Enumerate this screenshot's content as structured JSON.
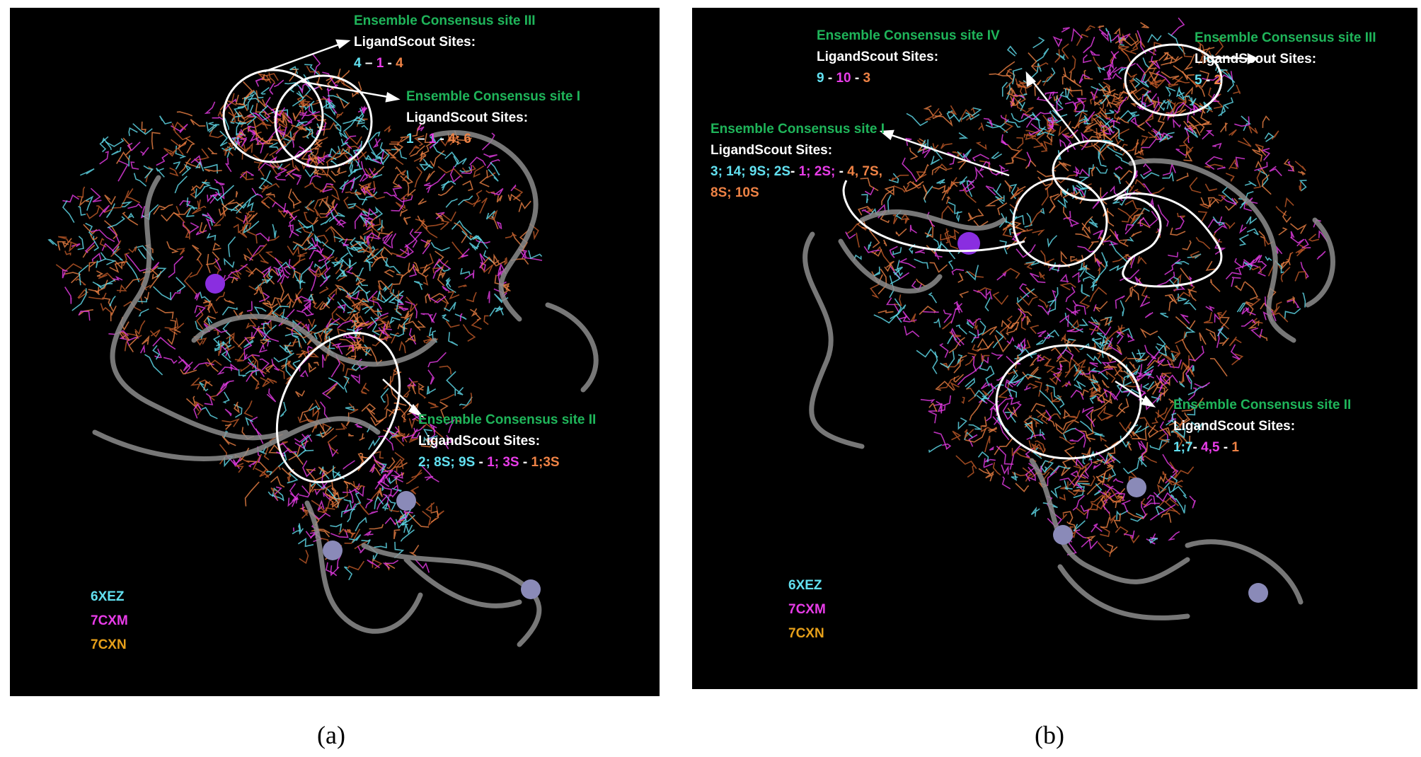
{
  "colors": {
    "site_title": "#1fb55a",
    "xez": "#62e0f0",
    "cxm": "#e83ce8",
    "cxn_ids": "#ee8245",
    "cxn_legend": "#e7a01a",
    "ribbon": "#8c8c8c",
    "background": "#000000"
  },
  "panel_a": {
    "caption": "(a)",
    "site_iii": {
      "title": "Ensemble Consensus site III",
      "subtitle": "LigandScout Sites:",
      "line": [
        {
          "t": "4",
          "c": "c"
        },
        {
          "t": " – ",
          "c": "w"
        },
        {
          "t": "1",
          "c": "m"
        },
        {
          "t": " - ",
          "c": "w"
        },
        {
          "t": "4",
          "c": "o"
        }
      ]
    },
    "site_i": {
      "title": "Ensemble Consensus site I",
      "subtitle": "LigandScout Sites:",
      "line": [
        {
          "t": "1",
          "c": "c"
        },
        {
          "t": " – ",
          "c": "w"
        },
        {
          "t": "1",
          "c": "m"
        },
        {
          "t": " - ",
          "c": "w"
        },
        {
          "t": "4; 6",
          "c": "o"
        }
      ]
    },
    "site_ii": {
      "title": "Ensemble Consensus site II",
      "subtitle": "LigandScout Sites:",
      "line": [
        {
          "t": "2; 8S; 9S",
          "c": "c"
        },
        {
          "t": " - ",
          "c": "w"
        },
        {
          "t": "1; 3S",
          "c": "m"
        },
        {
          "t": " - ",
          "c": "w"
        },
        {
          "t": "1;3S",
          "c": "o"
        }
      ]
    },
    "legend": [
      "6XEZ",
      "7CXM",
      "7CXN"
    ]
  },
  "panel_b": {
    "caption": "(b)",
    "site_iv": {
      "title": "Ensemble Consensus site IV",
      "subtitle": "LigandScout Sites:",
      "line": [
        {
          "t": "9",
          "c": "c"
        },
        {
          "t": " - ",
          "c": "w"
        },
        {
          "t": "10",
          "c": "m"
        },
        {
          "t": " - ",
          "c": "w"
        },
        {
          "t": "3",
          "c": "o"
        }
      ]
    },
    "site_iii": {
      "title": "Ensemble Consensus site III",
      "subtitle": "LigandScout Sites:",
      "line": [
        {
          "t": "5",
          "c": "c"
        },
        {
          "t": " - ",
          "c": "w"
        },
        {
          "t": "2",
          "c": "o"
        }
      ]
    },
    "site_i": {
      "title": "Ensemble Consensus site I",
      "subtitle": "LigandScout Sites:",
      "line": [
        {
          "t": "3; 14; 9S; 2S",
          "c": "c"
        },
        {
          "t": "- ",
          "c": "w"
        },
        {
          "t": "1; 2S;",
          "c": "m"
        },
        {
          "t": " - ",
          "c": "w"
        },
        {
          "t": "4, 7S,",
          "c": "o"
        }
      ],
      "line2": [
        {
          "t": "8S; 10S",
          "c": "o"
        }
      ]
    },
    "site_ii": {
      "title": "Ensemble Consensus site II",
      "subtitle": "LigandScout Sites:",
      "line": [
        {
          "t": "1;7",
          "c": "c"
        },
        {
          "t": "- ",
          "c": "w"
        },
        {
          "t": "4,5",
          "c": "m"
        },
        {
          "t": " - ",
          "c": "w"
        },
        {
          "t": "1",
          "c": "o"
        }
      ]
    },
    "legend": [
      "6XEZ",
      "7CXM",
      "7CXN"
    ]
  }
}
